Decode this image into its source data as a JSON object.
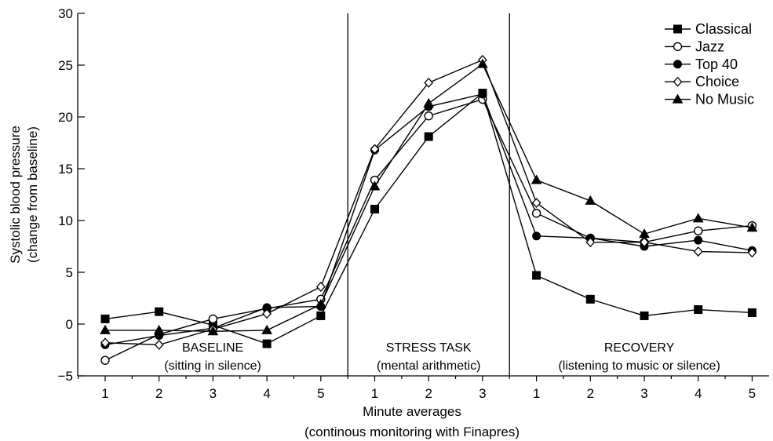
{
  "chart_data": {
    "type": "line",
    "ylabel": [
      "Systolic blood pressure",
      "(change from baseline)"
    ],
    "xlabel": [
      "Minute averages",
      "(continous monitoring with Finapres)"
    ],
    "ylim": [
      -5,
      30
    ],
    "yticks": [
      -5,
      0,
      5,
      10,
      15,
      20,
      25,
      30
    ],
    "ytick_labels": [
      "−5",
      "0",
      "5",
      "10",
      "15",
      "20",
      "25",
      "30"
    ],
    "phases": [
      {
        "title": "BASELINE",
        "subtitle": "(sitting in silence)",
        "ticks": [
          "1",
          "2",
          "3",
          "4",
          "5"
        ]
      },
      {
        "title": "STRESS TASK",
        "subtitle": "(mental arithmetic)",
        "ticks": [
          "1",
          "2",
          "3"
        ]
      },
      {
        "title": "RECOVERY",
        "subtitle": "(listening to music or silence)",
        "ticks": [
          "1",
          "2",
          "3",
          "4",
          "5"
        ]
      }
    ],
    "legend_position": "top-right",
    "series": [
      {
        "name": "Classical",
        "marker": "square-filled",
        "values": [
          0.5,
          1.2,
          -0.1,
          -1.9,
          0.8,
          11.1,
          18.1,
          22.3,
          4.7,
          2.4,
          0.8,
          1.4,
          1.1
        ]
      },
      {
        "name": "Jazz",
        "marker": "circle-open",
        "values": [
          -3.5,
          -1.0,
          0.5,
          1.5,
          2.4,
          13.9,
          20.1,
          21.7,
          10.7,
          8.3,
          7.9,
          9.0,
          9.5
        ]
      },
      {
        "name": "Top 40",
        "marker": "circle-filled",
        "values": [
          -2.0,
          -1.1,
          -0.4,
          1.6,
          1.7,
          16.8,
          21.0,
          22.2,
          8.5,
          8.3,
          7.5,
          8.1,
          7.1
        ]
      },
      {
        "name": "Choice",
        "marker": "diamond-open",
        "values": [
          -1.8,
          -2.0,
          -0.5,
          1.0,
          3.6,
          16.9,
          23.3,
          25.5,
          11.7,
          7.9,
          7.9,
          7.0,
          6.9
        ]
      },
      {
        "name": "No Music",
        "marker": "triangle-filled",
        "values": [
          -0.6,
          -0.6,
          -0.7,
          -0.6,
          1.9,
          13.3,
          21.3,
          25.1,
          13.9,
          11.9,
          8.7,
          10.2,
          9.3
        ]
      }
    ]
  }
}
